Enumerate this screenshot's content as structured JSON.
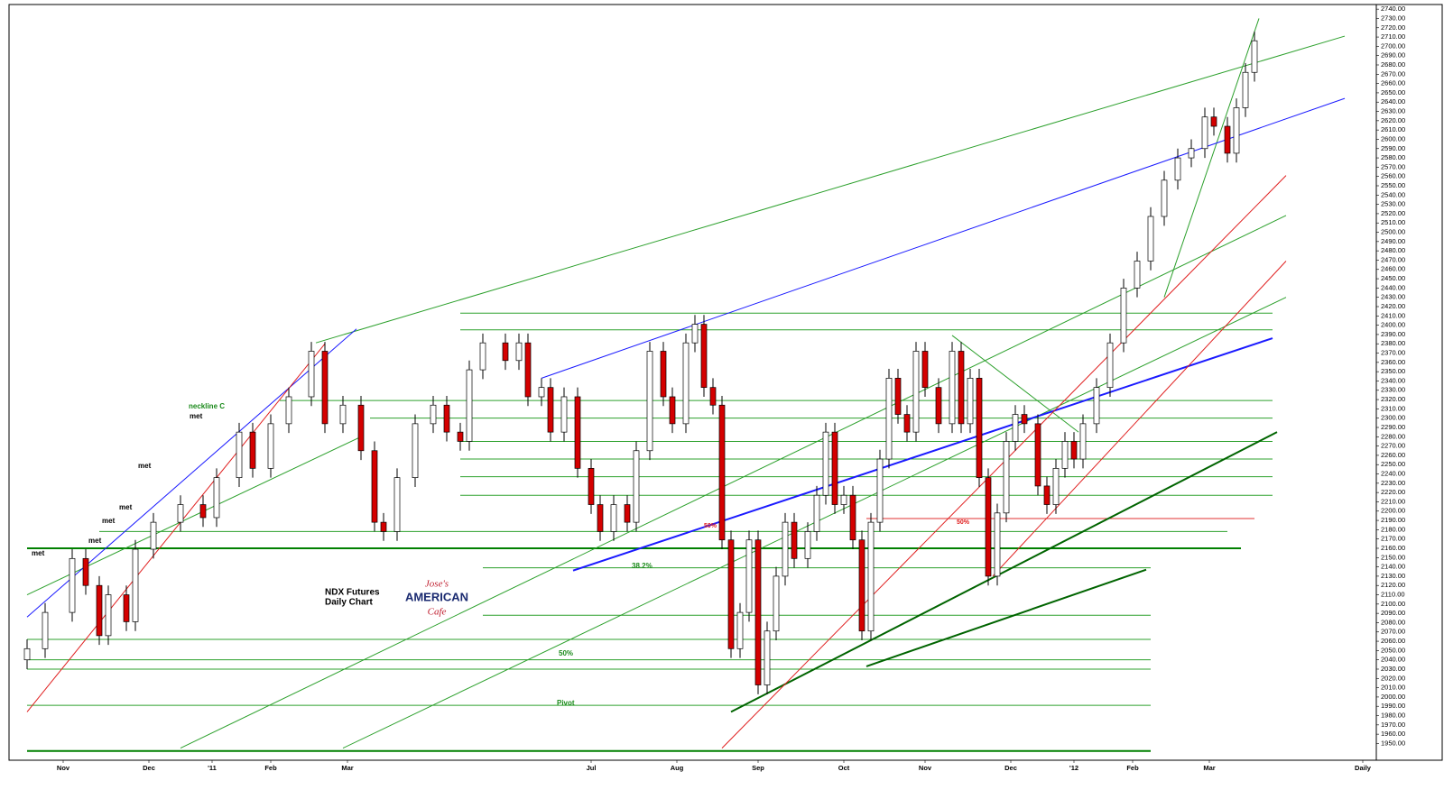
{
  "chart_data": {
    "type": "candlestick",
    "xlim": [
      0,
      303
    ],
    "xticks": [
      {
        "value": 12,
        "label": "Nov"
      },
      {
        "value": 31,
        "label": "Dec"
      },
      {
        "value": 45,
        "label": "'11"
      },
      {
        "value": 58,
        "label": "Feb"
      },
      {
        "value": 75,
        "label": "Mar"
      },
      {
        "value": 129,
        "label": "Jul"
      },
      {
        "value": 148,
        "label": "Aug"
      },
      {
        "value": 166,
        "label": "Sep"
      },
      {
        "value": 185,
        "label": "Oct"
      },
      {
        "value": 203,
        "label": "Nov"
      },
      {
        "value": 222,
        "label": "Dec"
      },
      {
        "value": 236,
        "label": "'12"
      },
      {
        "value": 249,
        "label": "Feb"
      },
      {
        "value": 266,
        "label": "Mar"
      },
      {
        "value": 300,
        "label": "Daily"
      }
    ],
    "ylim": [
      1932,
      2745
    ],
    "yticks": [
      {
        "value": 1950,
        "label": "1950.00"
      },
      {
        "value": 1960,
        "label": "1960.00"
      },
      {
        "value": 1970,
        "label": "1970.00"
      },
      {
        "value": 1980,
        "label": "1980.00"
      },
      {
        "value": 1990,
        "label": "1990.00"
      },
      {
        "value": 2000,
        "label": "2000.00"
      },
      {
        "value": 2010,
        "label": "2010.00"
      },
      {
        "value": 2020,
        "label": "2020.00"
      },
      {
        "value": 2030,
        "label": "2030.00"
      },
      {
        "value": 2040,
        "label": "2040.00"
      },
      {
        "value": 2050,
        "label": "2050.00"
      },
      {
        "value": 2060,
        "label": "2060.00"
      },
      {
        "value": 2070,
        "label": "2070.00"
      },
      {
        "value": 2080,
        "label": "2080.00"
      },
      {
        "value": 2090,
        "label": "2090.00"
      },
      {
        "value": 2100,
        "label": "2100.00"
      },
      {
        "value": 2110,
        "label": "2110.00"
      },
      {
        "value": 2120,
        "label": "2120.00"
      },
      {
        "value": 2130,
        "label": "2130.00"
      },
      {
        "value": 2140,
        "label": "2140.00"
      },
      {
        "value": 2150,
        "label": "2150.00"
      },
      {
        "value": 2160,
        "label": "2160.00"
      },
      {
        "value": 2170,
        "label": "2170.00"
      },
      {
        "value": 2180,
        "label": "2180.00"
      },
      {
        "value": 2190,
        "label": "2190.00"
      },
      {
        "value": 2200,
        "label": "2200.00"
      },
      {
        "value": 2210,
        "label": "2210.00"
      },
      {
        "value": 2220,
        "label": "2220.00"
      },
      {
        "value": 2230,
        "label": "2230.00"
      },
      {
        "value": 2240,
        "label": "2240.00"
      },
      {
        "value": 2250,
        "label": "2250.00"
      },
      {
        "value": 2260,
        "label": "2260.00"
      },
      {
        "value": 2270,
        "label": "2270.00"
      },
      {
        "value": 2280,
        "label": "2280.00"
      },
      {
        "value": 2290,
        "label": "2290.00"
      },
      {
        "value": 2300,
        "label": "2300.00"
      },
      {
        "value": 2310,
        "label": "2310.00"
      },
      {
        "value": 2320,
        "label": "2320.00"
      },
      {
        "value": 2330,
        "label": "2330.00"
      },
      {
        "value": 2340,
        "label": "2340.00"
      },
      {
        "value": 2350,
        "label": "2350.00"
      },
      {
        "value": 2360,
        "label": "2360.00"
      },
      {
        "value": 2370,
        "label": "2370.00"
      },
      {
        "value": 2380,
        "label": "2380.00"
      },
      {
        "value": 2390,
        "label": "2390.00"
      },
      {
        "value": 2400,
        "label": "2400.00"
      },
      {
        "value": 2410,
        "label": "2410.00"
      },
      {
        "value": 2420,
        "label": "2420.00"
      },
      {
        "value": 2430,
        "label": "2430.00"
      },
      {
        "value": 2440,
        "label": "2440.00"
      },
      {
        "value": 2450,
        "label": "2450.00"
      },
      {
        "value": 2460,
        "label": "2460.00"
      },
      {
        "value": 2470,
        "label": "2470.00"
      },
      {
        "value": 2480,
        "label": "2480.00"
      },
      {
        "value": 2490,
        "label": "2490.00"
      },
      {
        "value": 2500,
        "label": "2500.00"
      },
      {
        "value": 2510,
        "label": "2510.00"
      },
      {
        "value": 2520,
        "label": "2520.00"
      },
      {
        "value": 2530,
        "label": "2530.00"
      },
      {
        "value": 2540,
        "label": "2540.00"
      },
      {
        "value": 2550,
        "label": "2550.00"
      },
      {
        "value": 2560,
        "label": "2560.00"
      },
      {
        "value": 2570,
        "label": "2570.00"
      },
      {
        "value": 2580,
        "label": "2580.00"
      },
      {
        "value": 2590,
        "label": "2590.00"
      },
      {
        "value": 2600,
        "label": "2600.00"
      },
      {
        "value": 2610,
        "label": "2610.00"
      },
      {
        "value": 2620,
        "label": "2620.00"
      },
      {
        "value": 2630,
        "label": "2630.00"
      },
      {
        "value": 2640,
        "label": "2640.00"
      },
      {
        "value": 2650,
        "label": "2650.00"
      },
      {
        "value": 2660,
        "label": "2660.00"
      },
      {
        "value": 2670,
        "label": "2670.00"
      },
      {
        "value": 2680,
        "label": "2680.00"
      },
      {
        "value": 2690,
        "label": "2690.00"
      },
      {
        "value": 2700,
        "label": "2700.00"
      },
      {
        "value": 2710,
        "label": "2710.00"
      },
      {
        "value": 2720,
        "label": "2720.00"
      },
      {
        "value": 2730,
        "label": "2730.00"
      },
      {
        "value": 2740,
        "label": "2740.00"
      }
    ],
    "up_color": "#ffffff",
    "down_color": "#d40000",
    "x": [
      4,
      8,
      14,
      17,
      20,
      22,
      26,
      28,
      32,
      38,
      43,
      46,
      51,
      54,
      58,
      62,
      67,
      70,
      74,
      78,
      81,
      83,
      86,
      90,
      94,
      97,
      100,
      102,
      105,
      110,
      113,
      115,
      118,
      120,
      123,
      126,
      129,
      131,
      134,
      137,
      139,
      142,
      145,
      147,
      150,
      152,
      154,
      156,
      158,
      160,
      162,
      164,
      166,
      168,
      170,
      172,
      174,
      177,
      179,
      181,
      183,
      185,
      187,
      189,
      191,
      193,
      195,
      197,
      199,
      201,
      203,
      206,
      209,
      211,
      213,
      215,
      217,
      219,
      221,
      223,
      225,
      228,
      230,
      232,
      234,
      236,
      238,
      241,
      244,
      247,
      250,
      253,
      256,
      259,
      262,
      265,
      267,
      270,
      272,
      274,
      276
    ],
    "open": [
      2040,
      2052,
      2091,
      2149,
      2120,
      2066,
      2110,
      2081,
      2159,
      2188,
      2207,
      2193,
      2236,
      2285,
      2246,
      2294,
      2323,
      2372,
      2294,
      2314,
      2265,
      2188,
      2178,
      2236,
      2294,
      2314,
      2285,
      2275,
      2352,
      2381,
      2362,
      2381,
      2323,
      2333,
      2285,
      2323,
      2246,
      2207,
      2178,
      2207,
      2188,
      2265,
      2372,
      2323,
      2294,
      2381,
      2401,
      2333,
      2314,
      2169,
      2052,
      2091,
      2169,
      2013,
      2071,
      2130,
      2188,
      2149,
      2178,
      2217,
      2285,
      2207,
      2217,
      2169,
      2071,
      2188,
      2256,
      2343,
      2304,
      2285,
      2372,
      2333,
      2294,
      2372,
      2294,
      2343,
      2236,
      2130,
      2198,
      2275,
      2304,
      2294,
      2227,
      2207,
      2246,
      2275,
      2256,
      2294,
      2333,
      2381,
      2440,
      2469,
      2517,
      2556,
      2580,
      2590,
      2624,
      2614,
      2585,
      2634,
      2672
    ],
    "high": [
      2062,
      2101,
      2159,
      2159,
      2130,
      2120,
      2120,
      2169,
      2198,
      2217,
      2217,
      2246,
      2295,
      2295,
      2304,
      2333,
      2382,
      2382,
      2324,
      2324,
      2275,
      2198,
      2246,
      2304,
      2324,
      2324,
      2295,
      2362,
      2391,
      2391,
      2391,
      2391,
      2343,
      2343,
      2333,
      2333,
      2256,
      2217,
      2217,
      2217,
      2275,
      2382,
      2382,
      2333,
      2391,
      2411,
      2411,
      2343,
      2324,
      2179,
      2101,
      2179,
      2179,
      2081,
      2140,
      2198,
      2198,
      2188,
      2227,
      2295,
      2295,
      2227,
      2227,
      2179,
      2198,
      2266,
      2353,
      2353,
      2314,
      2382,
      2382,
      2343,
      2382,
      2382,
      2353,
      2353,
      2246,
      2208,
      2285,
      2314,
      2314,
      2304,
      2237,
      2256,
      2285,
      2285,
      2304,
      2343,
      2391,
      2450,
      2479,
      2527,
      2566,
      2590,
      2600,
      2634,
      2634,
      2624,
      2644,
      2682,
      2716
    ],
    "low": [
      2030,
      2042,
      2081,
      2110,
      2056,
      2056,
      2071,
      2071,
      2149,
      2178,
      2183,
      2183,
      2226,
      2236,
      2236,
      2284,
      2313,
      2284,
      2284,
      2255,
      2178,
      2168,
      2168,
      2226,
      2284,
      2275,
      2265,
      2265,
      2342,
      2352,
      2352,
      2313,
      2313,
      2275,
      2275,
      2236,
      2197,
      2168,
      2168,
      2178,
      2178,
      2255,
      2313,
      2284,
      2284,
      2371,
      2323,
      2304,
      2159,
      2042,
      2042,
      2081,
      2003,
      2003,
      2061,
      2120,
      2139,
      2139,
      2168,
      2207,
      2197,
      2197,
      2159,
      2061,
      2061,
      2178,
      2246,
      2294,
      2275,
      2275,
      2323,
      2284,
      2284,
      2284,
      2284,
      2226,
      2120,
      2120,
      2188,
      2265,
      2284,
      2217,
      2197,
      2197,
      2236,
      2246,
      2246,
      2284,
      2323,
      2371,
      2430,
      2459,
      2507,
      2546,
      2570,
      2580,
      2604,
      2575,
      2575,
      2624,
      2662
    ],
    "close": [
      2052,
      2091,
      2149,
      2120,
      2066,
      2110,
      2081,
      2159,
      2188,
      2207,
      2193,
      2236,
      2285,
      2246,
      2294,
      2323,
      2372,
      2294,
      2314,
      2265,
      2188,
      2178,
      2236,
      2294,
      2314,
      2285,
      2275,
      2352,
      2381,
      2362,
      2381,
      2323,
      2333,
      2285,
      2323,
      2246,
      2207,
      2178,
      2207,
      2188,
      2265,
      2372,
      2323,
      2294,
      2381,
      2401,
      2333,
      2314,
      2169,
      2052,
      2091,
      2169,
      2013,
      2071,
      2130,
      2188,
      2149,
      2178,
      2217,
      2285,
      2207,
      2217,
      2169,
      2071,
      2188,
      2256,
      2343,
      2304,
      2285,
      2372,
      2333,
      2294,
      2372,
      2294,
      2343,
      2236,
      2130,
      2198,
      2275,
      2304,
      2294,
      2227,
      2207,
      2246,
      2275,
      2256,
      2294,
      2333,
      2381,
      2440,
      2469,
      2517,
      2556,
      2580,
      2590,
      2624,
      2614,
      2585,
      2634,
      2672,
      2706
    ],
    "trendlines": [
      {
        "color": "#008000",
        "width": 2,
        "x": [
          4,
          273
        ],
        "y": [
          2160,
          2160
        ]
      },
      {
        "color": "#008000",
        "width": 2,
        "x": [
          4,
          253
        ],
        "y": [
          1942,
          1942
        ]
      },
      {
        "color": "#2ca02c",
        "width": 1,
        "x": [
          100,
          280
        ],
        "y": [
          2413,
          2413
        ]
      },
      {
        "color": "#2ca02c",
        "width": 1,
        "x": [
          100,
          280
        ],
        "y": [
          2395,
          2395
        ]
      },
      {
        "color": "#2ca02c",
        "width": 1,
        "x": [
          60,
          280
        ],
        "y": [
          2319,
          2319
        ]
      },
      {
        "color": "#2ca02c",
        "width": 1,
        "x": [
          80,
          280
        ],
        "y": [
          2300,
          2300
        ]
      },
      {
        "color": "#2ca02c",
        "width": 1,
        "x": [
          100,
          280
        ],
        "y": [
          2275,
          2275
        ]
      },
      {
        "color": "#2ca02c",
        "width": 1,
        "x": [
          100,
          280
        ],
        "y": [
          2256,
          2256
        ]
      },
      {
        "color": "#2ca02c",
        "width": 1,
        "x": [
          100,
          280
        ],
        "y": [
          2237,
          2237
        ]
      },
      {
        "color": "#2ca02c",
        "width": 1,
        "x": [
          100,
          280
        ],
        "y": [
          2217,
          2217
        ]
      },
      {
        "color": "#2ca02c",
        "width": 1,
        "x": [
          20,
          270
        ],
        "y": [
          2178,
          2178
        ]
      },
      {
        "color": "#2ca02c",
        "width": 1,
        "x": [
          105,
          253
        ],
        "y": [
          2139,
          2139
        ]
      },
      {
        "color": "#2ca02c",
        "width": 1,
        "x": [
          105,
          253
        ],
        "y": [
          2088,
          2088
        ]
      },
      {
        "color": "#2ca02c",
        "width": 1,
        "x": [
          4,
          253
        ],
        "y": [
          2062,
          2062
        ]
      },
      {
        "color": "#2ca02c",
        "width": 1,
        "x": [
          4,
          253
        ],
        "y": [
          2040,
          2040
        ]
      },
      {
        "color": "#2ca02c",
        "width": 1,
        "x": [
          4,
          253
        ],
        "y": [
          2030,
          2030
        ]
      },
      {
        "color": "#2ca02c",
        "width": 1,
        "x": [
          4,
          253
        ],
        "y": [
          1991,
          1991
        ]
      },
      {
        "color": "#e03030",
        "width": 1,
        "x": [
          190,
          276
        ],
        "y": [
          2192,
          2192
        ]
      },
      {
        "color": "#2ca02c",
        "width": 1,
        "x": [
          68,
          296
        ],
        "y": [
          2381,
          2711
        ]
      },
      {
        "color": "#2ca02c",
        "width": 1,
        "x": [
          38,
          283
        ],
        "y": [
          1945,
          2518
        ]
      },
      {
        "color": "#2ca02c",
        "width": 1,
        "x": [
          74,
          283
        ],
        "y": [
          1945,
          2430
        ]
      },
      {
        "color": "#2ca02c",
        "width": 1,
        "x": [
          4,
          78
        ],
        "y": [
          2110,
          2280
        ]
      },
      {
        "color": "#2ca02c",
        "width": 1,
        "x": [
          209,
          237
        ],
        "y": [
          2389,
          2285
        ]
      },
      {
        "color": "#2ca02c",
        "width": 1,
        "x": [
          256,
          277
        ],
        "y": [
          2430,
          2730
        ]
      },
      {
        "color": "#1a1aff",
        "width": 1,
        "x": [
          118,
          296
        ],
        "y": [
          2343,
          2644
        ]
      },
      {
        "color": "#1a1aff",
        "width": 2,
        "x": [
          125,
          280
        ],
        "y": [
          2136,
          2386
        ]
      },
      {
        "color": "#1a1aff",
        "width": 1,
        "x": [
          4,
          77
        ],
        "y": [
          2086,
          2396
        ]
      },
      {
        "color": "#006400",
        "width": 2,
        "x": [
          160,
          281
        ],
        "y": [
          1984,
          2285
        ]
      },
      {
        "color": "#006400",
        "width": 2,
        "x": [
          190,
          252
        ],
        "y": [
          2033,
          2137
        ]
      },
      {
        "color": "#e02020",
        "width": 1,
        "x": [
          158,
          283
        ],
        "y": [
          1945,
          2561
        ]
      },
      {
        "color": "#e02020",
        "width": 1,
        "x": [
          4,
          70
        ],
        "y": [
          1984,
          2380
        ]
      },
      {
        "color": "#e02020",
        "width": 1,
        "x": [
          218,
          283
        ],
        "y": [
          2130,
          2469
        ]
      }
    ],
    "annotations": [
      "neckline C",
      "met",
      "met",
      "met",
      "met",
      "met",
      "met",
      "NDX  Futures",
      "Daily Chart",
      "38.2%",
      "50%",
      "Pivot",
      "50%",
      "50%"
    ],
    "logo": [
      "Jose's",
      "AMERICAN",
      "Cafe"
    ]
  }
}
